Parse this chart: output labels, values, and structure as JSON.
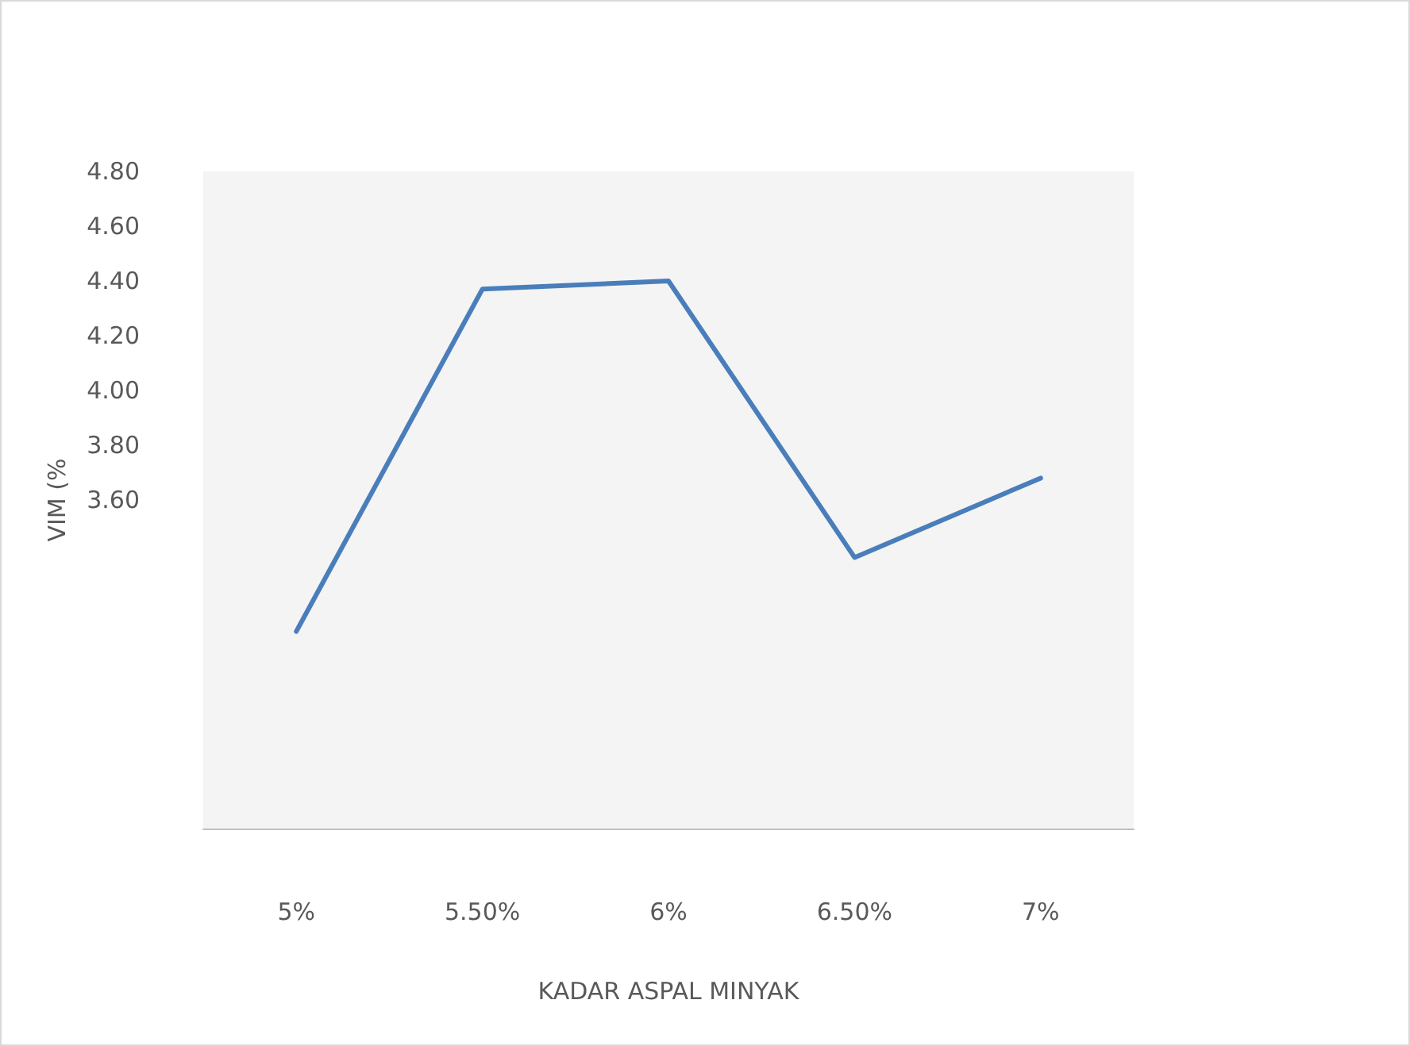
{
  "chart_data": {
    "type": "line",
    "xlabel": "KADAR ASPAL MINYAK",
    "ylabel": "VIM (%",
    "categories": [
      "5%",
      "5.50%",
      "6%",
      "6.50%",
      "7%"
    ],
    "series": [
      {
        "color": "#4a7ebb",
        "values": [
          3.12,
          4.37,
          4.4,
          3.39,
          3.68
        ]
      }
    ],
    "ylim": [
      2.4,
      4.8
    ],
    "yticks": [
      {
        "value": 3.6,
        "label": "3.60"
      },
      {
        "value": 3.8,
        "label": "3.80"
      },
      {
        "value": 4.0,
        "label": "4.00"
      },
      {
        "value": 4.2,
        "label": "4.20"
      },
      {
        "value": 4.4,
        "label": "4.40"
      },
      {
        "value": 4.6,
        "label": "4.60"
      },
      {
        "value": 4.8,
        "label": "4.80"
      }
    ],
    "grid": false,
    "marker": "none",
    "line_style": "solid"
  }
}
